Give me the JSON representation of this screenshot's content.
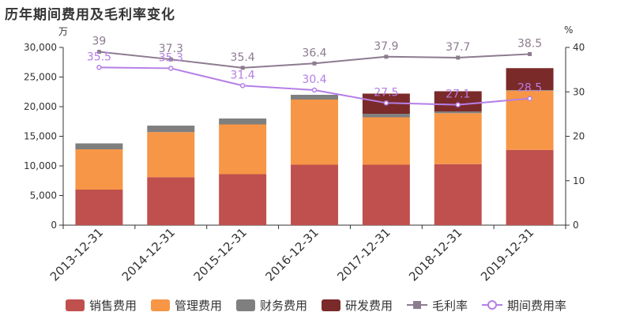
{
  "title": "历年期间费用及毛利率变化",
  "units": {
    "left": "万",
    "right": "%"
  },
  "colors": {
    "sales": "#c0504d",
    "management": "#f79646",
    "finance": "#7f7f7f",
    "rd": "#7b2a2a",
    "gross_margin": "#8c7b8f",
    "period_rate": "#b57ee6",
    "axis": "#333333",
    "grid": "#e6e6e6"
  },
  "legend": [
    {
      "key": "sales",
      "label": "销售费用",
      "kind": "bar",
      "icon": "bar-swatch"
    },
    {
      "key": "management",
      "label": "管理费用",
      "kind": "bar",
      "icon": "bar-swatch"
    },
    {
      "key": "finance",
      "label": "财务费用",
      "kind": "bar",
      "icon": "bar-swatch"
    },
    {
      "key": "rd",
      "label": "研发费用",
      "kind": "bar",
      "icon": "bar-swatch"
    },
    {
      "key": "gross_margin",
      "label": "毛利率",
      "kind": "line-square",
      "icon": "line-square-marker"
    },
    {
      "key": "period_rate",
      "label": "期间费用率",
      "kind": "line-circle",
      "icon": "line-circle-marker"
    }
  ],
  "chart_data": {
    "type": "bar",
    "stacked": true,
    "categories": [
      "2013-12-31",
      "2014-12-31",
      "2015-12-31",
      "2016-12-31",
      "2017-12-31",
      "2018-12-31",
      "2019-12-31"
    ],
    "series": [
      {
        "name": "销售费用",
        "key": "sales",
        "values": [
          6000,
          8100,
          8600,
          10200,
          10200,
          10300,
          12700
        ]
      },
      {
        "name": "管理费用",
        "key": "management",
        "values": [
          6800,
          7600,
          8400,
          11000,
          8000,
          8600,
          10000
        ]
      },
      {
        "name": "财务费用",
        "key": "finance",
        "values": [
          1000,
          1100,
          1000,
          800,
          600,
          300,
          100
        ]
      },
      {
        "name": "研发费用",
        "key": "rd",
        "values": [
          0,
          0,
          0,
          0,
          3400,
          3400,
          3700
        ]
      }
    ],
    "lines": [
      {
        "name": "毛利率",
        "key": "gross_margin",
        "axis": "right",
        "marker": "square",
        "values": [
          39,
          37.3,
          35.4,
          36.4,
          37.9,
          37.7,
          38.5
        ],
        "labels": [
          "39",
          "37.3",
          "35.4",
          "36.4",
          "37.9",
          "37.7",
          "38.5"
        ]
      },
      {
        "name": "期间费用率",
        "key": "period_rate",
        "axis": "right",
        "marker": "circle",
        "values": [
          35.5,
          35.3,
          31.4,
          30.4,
          27.5,
          27.1,
          28.5
        ],
        "labels": [
          "35.5",
          "35.3",
          "31.4",
          "30.4",
          "27.5",
          "27.1",
          "28.5"
        ]
      }
    ],
    "y_left": {
      "min": 0,
      "max": 30000,
      "ticks": [
        0,
        5000,
        10000,
        15000,
        20000,
        25000,
        30000
      ],
      "tick_labels": [
        "0",
        "5,000",
        "10,000",
        "15,000",
        "20,000",
        "25,000",
        "30,000"
      ]
    },
    "y_right": {
      "min": 0,
      "max": 40,
      "ticks": [
        0,
        10,
        20,
        30,
        40
      ],
      "tick_labels": [
        "0",
        "10",
        "20",
        "30",
        "40"
      ]
    },
    "grid": false,
    "legend_position": "bottom"
  }
}
